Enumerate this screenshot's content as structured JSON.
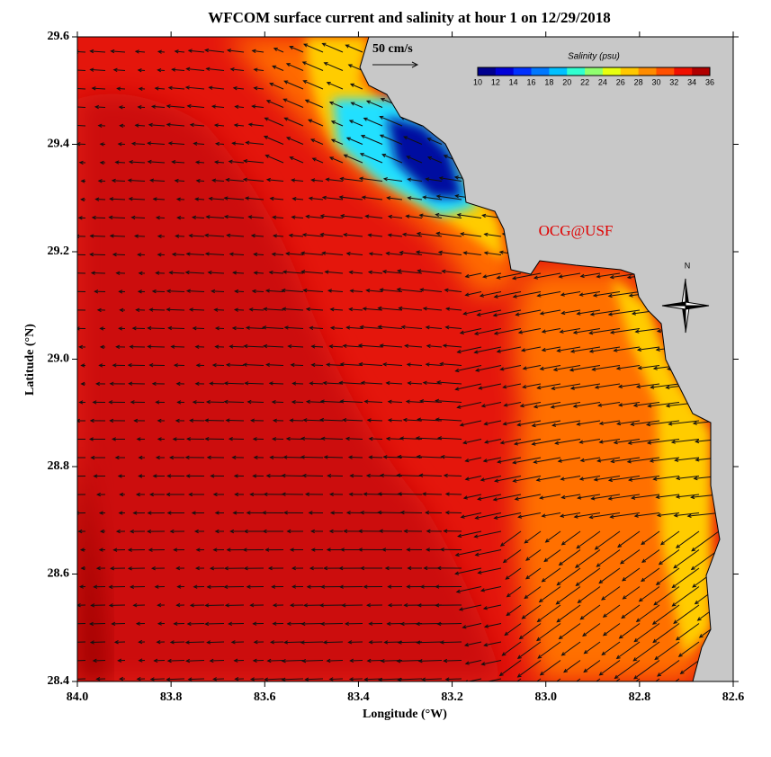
{
  "map": {
    "title": "WFCOM surface current and salinity at hour 1 on 12/29/2018",
    "xlabel": "Longitude (°W)",
    "ylabel": "Latitude (°N)",
    "xlim": [
      84,
      82.6
    ],
    "ylim": [
      28.4,
      29.6
    ],
    "xticks": [
      {
        "value": 84,
        "label": "84.0"
      },
      83.8,
      83.6,
      83.4,
      83.2,
      {
        "value": 83,
        "label": "83.0"
      },
      82.8,
      82.6
    ],
    "yticks": [
      28.4,
      28.6,
      28.8,
      {
        "value": 29,
        "label": "29.0"
      },
      29.2,
      29.4,
      29.6
    ],
    "colorbar": {
      "title": "Salinity (psu)",
      "range": [
        10,
        36
      ],
      "ticks": [
        10,
        12,
        14,
        16,
        18,
        20,
        22,
        24,
        26,
        28,
        30,
        32,
        34,
        36
      ],
      "colors": [
        "#00008f",
        "#0000d8",
        "#0030ff",
        "#0078ff",
        "#00c0ff",
        "#30ffd0",
        "#90ff70",
        "#e8ff10",
        "#ffc800",
        "#ff8c00",
        "#ff5000",
        "#f01000",
        "#b00000"
      ]
    },
    "scale_label": "50 cm/s",
    "credit": "OCG@USF",
    "north": "N"
  }
}
